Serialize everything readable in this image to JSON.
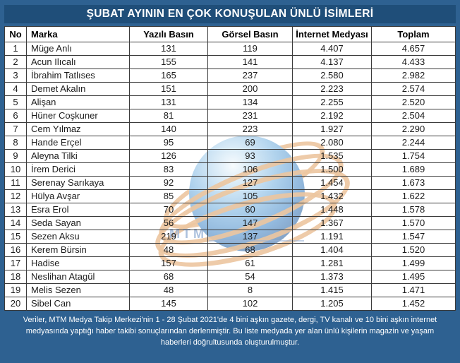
{
  "header": {
    "title": "ŞUBAT AYININ EN ÇOK KONUŞULAN ÜNLÜ İSİMLERİ"
  },
  "chart_data": {
    "type": "table",
    "title": "ŞUBAT AYININ EN ÇOK KONUŞULAN ÜNLÜ İSİMLERİ",
    "columns": [
      "No",
      "Marka",
      "Yazılı Basın",
      "Görsel Basın",
      "İnternet Medyası",
      "Toplam"
    ],
    "rows": [
      [
        "1",
        "Müge Anlı",
        "131",
        "119",
        "4.407",
        "4.657"
      ],
      [
        "2",
        "Acun Ilıcalı",
        "155",
        "141",
        "4.137",
        "4.433"
      ],
      [
        "3",
        "İbrahim Tatlıses",
        "165",
        "237",
        "2.580",
        "2.982"
      ],
      [
        "4",
        "Demet Akalın",
        "151",
        "200",
        "2.223",
        "2.574"
      ],
      [
        "5",
        "Alişan",
        "131",
        "134",
        "2.255",
        "2.520"
      ],
      [
        "6",
        "Hüner Coşkuner",
        "81",
        "231",
        "2.192",
        "2.504"
      ],
      [
        "7",
        "Cem Yılmaz",
        "140",
        "223",
        "1.927",
        "2.290"
      ],
      [
        "8",
        "Hande Erçel",
        "95",
        "69",
        "2.080",
        "2.244"
      ],
      [
        "9",
        "Aleyna Tilki",
        "126",
        "93",
        "1.535",
        "1.754"
      ],
      [
        "10",
        "İrem Derici",
        "83",
        "106",
        "1.500",
        "1.689"
      ],
      [
        "11",
        "Serenay Sarıkaya",
        "92",
        "127",
        "1.454",
        "1.673"
      ],
      [
        "12",
        "Hülya Avşar",
        "85",
        "105",
        "1.432",
        "1.622"
      ],
      [
        "13",
        "Esra Erol",
        "70",
        "60",
        "1.448",
        "1.578"
      ],
      [
        "14",
        "Seda Sayan",
        "56",
        "147",
        "1.367",
        "1.570"
      ],
      [
        "15",
        "Sezen Aksu",
        "219",
        "137",
        "1.191",
        "1.547"
      ],
      [
        "16",
        "Kerem Bürsin",
        "48",
        "68",
        "1.404",
        "1.520"
      ],
      [
        "17",
        "Hadise",
        "157",
        "61",
        "1.281",
        "1.499"
      ],
      [
        "18",
        "Neslihan Atagül",
        "68",
        "54",
        "1.373",
        "1.495"
      ],
      [
        "19",
        "Melis Sezen",
        "48",
        "8",
        "1.415",
        "1.471"
      ],
      [
        "20",
        "Sibel Can",
        "145",
        "102",
        "1.205",
        "1.452"
      ]
    ]
  },
  "watermark": {
    "label": "MTM"
  },
  "footer": {
    "text": "Veriler, MTM Medya Takip Merkezi'nin 1  - 28 Şubat 2021'de 4 bini aşkın gazete, dergi, TV kanalı ve 10 bini aşkın internet medyasında yaptığı haber takibi sonuçlarından derlenmiştir.  Bu liste medyada yer alan ünlü kişilerin magazin ve yaşam haberleri doğrultusunda oluşturulmuştur."
  },
  "colors": {
    "frame_blue": "#2e6191",
    "title_bar_navy": "#1f4e79",
    "cell_border": "#3b3b3b",
    "watermark_orange": "#de9852",
    "watermark_sphere_blue": "#3c82c4"
  }
}
